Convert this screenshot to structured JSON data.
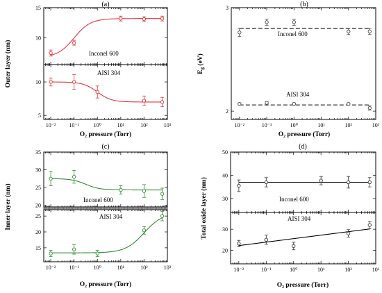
{
  "chart_data": [
    {
      "id": "a-top",
      "type": "scatter",
      "panel_label": "(a)",
      "ylabel": "Outer layer",
      "yunit": "(nm)",
      "annotation": "Inconel 600",
      "color": "#e8323a",
      "xscale": "log",
      "xlim": [
        0.005,
        1000
      ],
      "ylim": [
        5.6,
        15
      ],
      "yticks": [
        10,
        15
      ],
      "points": [
        {
          "x": 0.01,
          "y": 7.5,
          "err": 0.5
        },
        {
          "x": 0.1,
          "y": 9.2,
          "err": 0.4
        },
        {
          "x": 10,
          "y": 13.2,
          "err": 0.4
        },
        {
          "x": 100,
          "y": 13.1,
          "err": 0.4
        },
        {
          "x": 600,
          "y": 13.2,
          "err": 0.4
        }
      ],
      "fit": {
        "form": "sigmoid",
        "low": 6.8,
        "high": 13.2,
        "center_log10x": -1,
        "width": 0.35,
        "decreasing": false
      }
    },
    {
      "id": "a-bottom",
      "type": "scatter",
      "annotation": "AISI 304",
      "color": "#e8323a",
      "xscale": "log",
      "xlim": [
        0.005,
        1000
      ],
      "ylim": [
        4.4,
        12.6
      ],
      "yticks": [
        5,
        10
      ],
      "xticks": [
        "10⁻²",
        "10⁻¹",
        "10⁰",
        "10¹",
        "10²",
        "10³"
      ],
      "xlabel": "O₂ pressure (Torr)",
      "points": [
        {
          "x": 0.01,
          "y": 10.0,
          "err": 0.6
        },
        {
          "x": 0.1,
          "y": 10.0,
          "err": 1.1
        },
        {
          "x": 1,
          "y": 8.5,
          "err": 0.9
        },
        {
          "x": 100,
          "y": 7.2,
          "err": 0.7
        },
        {
          "x": 600,
          "y": 7.0,
          "err": 0.7
        }
      ],
      "fit": {
        "form": "sigmoid",
        "low": 7.0,
        "high": 10.0,
        "center_log10x": 0,
        "width": 0.3,
        "decreasing": true
      }
    },
    {
      "id": "b",
      "type": "scatter",
      "panel_label": "(b)",
      "ylabel": "E",
      "ylabel_sub": "g",
      "yunit": "(eV)",
      "color": "#444444",
      "xscale": "log",
      "xlim": [
        0.005,
        1000
      ],
      "ylim": [
        1.92,
        3.0
      ],
      "yticks": [
        2,
        3
      ],
      "xticks": [
        "10⁻²",
        "10⁻¹",
        "10⁰",
        "10¹",
        "10²",
        "10³"
      ],
      "xlabel": "O₂ pressure (Torr)",
      "annotations": [
        "Inconel 600",
        "AISI 304"
      ],
      "series": [
        {
          "name": "Inconel 600",
          "points": [
            {
              "x": 0.01,
              "y": 2.76,
              "err": 0.04
            },
            {
              "x": 0.1,
              "y": 2.86,
              "err": 0.03
            },
            {
              "x": 1,
              "y": 2.86,
              "err": 0.03
            },
            {
              "x": 100,
              "y": 2.77,
              "err": 0.03
            },
            {
              "x": 600,
              "y": 2.77,
              "err": 0.03
            }
          ],
          "fit_constant": 2.8
        },
        {
          "name": "AISI 304",
          "points": [
            {
              "x": 0.01,
              "y": 2.07,
              "err": 0.01
            },
            {
              "x": 0.1,
              "y": 2.08,
              "err": 0.01
            },
            {
              "x": 1,
              "y": 2.07,
              "err": 0.01
            },
            {
              "x": 100,
              "y": 2.07,
              "err": 0.01
            },
            {
              "x": 600,
              "y": 2.03,
              "err": 0.02
            }
          ],
          "fit_constant": 2.06
        }
      ]
    },
    {
      "id": "c-top",
      "type": "scatter",
      "panel_label": "(c)",
      "ylabel": "Inner layer",
      "yunit": "(nm)",
      "annotation": "Inconel 600",
      "color": "#2e8b2e",
      "xscale": "log",
      "xlim": [
        0.005,
        1000
      ],
      "ylim": [
        19.5,
        35
      ],
      "yticks": [
        20,
        25,
        30,
        35
      ],
      "points": [
        {
          "x": 0.01,
          "y": 27.5,
          "err": 2.0
        },
        {
          "x": 0.1,
          "y": 28.0,
          "err": 1.8
        },
        {
          "x": 10,
          "y": 24.3,
          "err": 1.2
        },
        {
          "x": 100,
          "y": 24.0,
          "err": 1.8
        },
        {
          "x": 600,
          "y": 23.2,
          "err": 1.6
        }
      ],
      "fit": {
        "form": "sigmoid",
        "low": 24.3,
        "high": 27.5,
        "center_log10x": -0.5,
        "width": 0.3,
        "decreasing": true
      }
    },
    {
      "id": "c-bottom",
      "type": "scatter",
      "annotation": "AISI 304",
      "color": "#2e8b2e",
      "xscale": "log",
      "xlim": [
        0.005,
        1000
      ],
      "ylim": [
        10.6,
        27
      ],
      "yticks": [
        15,
        20,
        25
      ],
      "xticks": [
        "10⁻²",
        "10⁻¹",
        "10⁰",
        "10¹",
        "10²",
        "10³"
      ],
      "xlabel": "O₂ pressure (Torr)",
      "points": [
        {
          "x": 0.01,
          "y": 13.2,
          "err": 1.0
        },
        {
          "x": 0.1,
          "y": 14.5,
          "err": 1.5
        },
        {
          "x": 1,
          "y": 13.2,
          "err": 1.0
        },
        {
          "x": 100,
          "y": 20.5,
          "err": 1.2
        },
        {
          "x": 600,
          "y": 25.0,
          "err": 1.5
        }
      ],
      "fit": {
        "form": "sigmoid",
        "low": 13.4,
        "high": 26.0,
        "center_log10x": 2.0,
        "width": 0.4,
        "decreasing": false
      }
    },
    {
      "id": "d-top",
      "type": "scatter",
      "panel_label": "(d)",
      "ylabel": "Total oxide layer",
      "yunit": "(nm)",
      "annotation": "Inconel 600",
      "color": "#333333",
      "xscale": "log",
      "xlim": [
        0.005,
        1000
      ],
      "ylim": [
        24,
        50
      ],
      "yticks": [
        30,
        40,
        50
      ],
      "points": [
        {
          "x": 0.01,
          "y": 35.5,
          "err": 2.5
        },
        {
          "x": 0.1,
          "y": 37.0,
          "err": 2.0
        },
        {
          "x": 10,
          "y": 37.7,
          "err": 1.8
        },
        {
          "x": 100,
          "y": 37.0,
          "err": 2.5
        },
        {
          "x": 600,
          "y": 37.0,
          "err": 2.0
        }
      ],
      "fit": {
        "form": "constant",
        "value": 37.0
      }
    },
    {
      "id": "d-bottom",
      "type": "scatter",
      "annotation": "AISI 304",
      "color": "#333333",
      "xscale": "log",
      "xlim": [
        0.005,
        1000
      ],
      "ylim": [
        13.5,
        38
      ],
      "yticks": [
        20,
        30
      ],
      "xticks": [
        "10⁻²",
        "10⁻¹",
        "10⁰",
        "10¹",
        "10²",
        "10³"
      ],
      "xlabel": "O₂ pressure (Torr)",
      "points": [
        {
          "x": 0.01,
          "y": 23.2,
          "err": 1.5
        },
        {
          "x": 0.1,
          "y": 25.0,
          "err": 2.2
        },
        {
          "x": 1,
          "y": 22.0,
          "err": 1.8
        },
        {
          "x": 100,
          "y": 28.0,
          "err": 1.8
        },
        {
          "x": 600,
          "y": 32.0,
          "err": 1.8
        }
      ],
      "fit": {
        "form": "linear_log",
        "at_xmin": 21.7,
        "at_xmax": 30.5
      }
    }
  ]
}
